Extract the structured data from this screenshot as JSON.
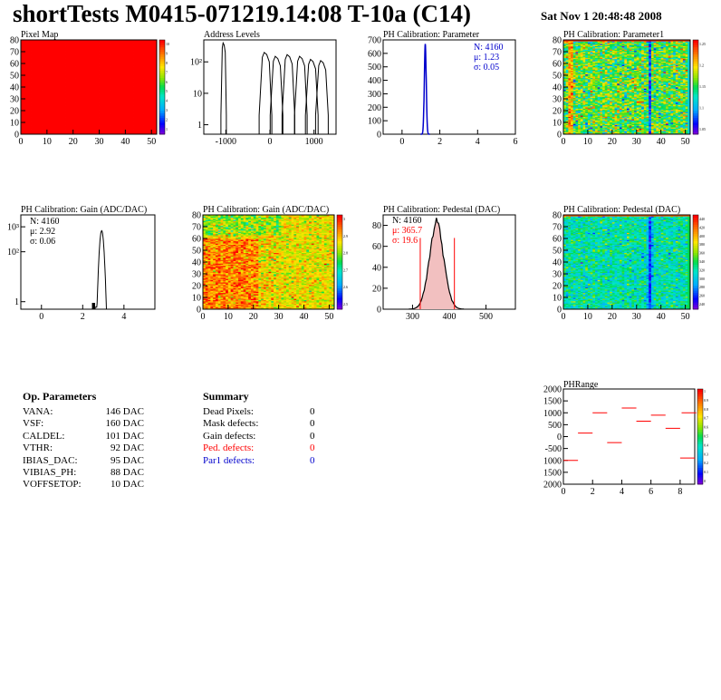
{
  "header": {
    "title": "shortTests M0415-071219.14:08 T-10a (C14)",
    "date": "Sat Nov  1 20:48:48 2008"
  },
  "colors": {
    "red": "#ff0000",
    "blue": "#0000cc",
    "hist_line": "#000000",
    "ped_fill": "#cc6666"
  },
  "panels": {
    "p1": {
      "title": "Pixel Map",
      "xticks": [
        "0",
        "10",
        "20",
        "30",
        "40",
        "50"
      ],
      "yticks": [
        "0",
        "10",
        "20",
        "30",
        "40",
        "50",
        "60",
        "70",
        "80"
      ],
      "zticks": [
        "10",
        "9",
        "8",
        "7",
        "6",
        "5",
        "4",
        "3",
        "2",
        "1"
      ]
    },
    "p2": {
      "title": "Address Levels",
      "xticks": [
        "-1000",
        "0",
        "1000"
      ],
      "yticks": [
        "1",
        "10",
        "10²"
      ]
    },
    "p3": {
      "title": "PH Calibration: Parameter",
      "xticks": [
        "0",
        "2",
        "4",
        "6"
      ],
      "yticks": [
        "0",
        "100",
        "200",
        "300",
        "400",
        "500",
        "600",
        "700"
      ],
      "stats": [
        "N: 4160",
        "μ: 1.23",
        "σ: 0.05"
      ]
    },
    "p4": {
      "title": "PH Calibration: Parameter1",
      "xticks": [
        "0",
        "10",
        "20",
        "30",
        "40",
        "50"
      ],
      "yticks": [
        "0",
        "10",
        "20",
        "30",
        "40",
        "50",
        "60",
        "70",
        "80"
      ],
      "zticks": [
        "1.25",
        "1.2",
        "1.15",
        "1.1",
        "1.05"
      ]
    },
    "p5": {
      "title": "PH Calibration: Gain (ADC/DAC)",
      "xticks": [
        "0",
        "2",
        "4"
      ],
      "yticks": [
        "1",
        "10²",
        "10³"
      ],
      "stats": [
        "N: 4160",
        "μ: 2.92",
        "σ: 0.06"
      ]
    },
    "p6": {
      "title": "PH Calibration: Gain (ADC/DAC)",
      "xticks": [
        "0",
        "10",
        "20",
        "30",
        "40",
        "50"
      ],
      "yticks": [
        "0",
        "10",
        "20",
        "30",
        "40",
        "50",
        "60",
        "70",
        "80"
      ],
      "zticks": [
        "3",
        "2.9",
        "2.8",
        "2.7",
        "2.6",
        "2.5"
      ]
    },
    "p7": {
      "title": "PH Calibration: Pedestal (DAC)",
      "xticks": [
        "300",
        "400",
        "500"
      ],
      "yticks": [
        "0",
        "20",
        "40",
        "60",
        "80"
      ],
      "stats": [
        "N: 4160",
        "μ: 365.7",
        "σ: 19.6"
      ]
    },
    "p8": {
      "title": "PH Calibration: Pedestal (DAC)",
      "xticks": [
        "0",
        "10",
        "20",
        "30",
        "40",
        "50"
      ],
      "yticks": [
        "0",
        "10",
        "20",
        "30",
        "40",
        "50",
        "60",
        "70",
        "80"
      ],
      "zticks": [
        "440",
        "420",
        "400",
        "380",
        "360",
        "340",
        "320",
        "300",
        "280",
        "260",
        "240"
      ]
    },
    "p9": {
      "title": "PHRange",
      "xticks": [
        "0",
        "2",
        "4",
        "6",
        "8"
      ],
      "yticks": [
        "2000",
        "1500",
        "1000",
        "500",
        "0",
        "-500",
        "1000",
        "1500",
        "2000"
      ],
      "zticks": [
        "1",
        "0.9",
        "0.8",
        "0.7",
        "0.6",
        "0.5",
        "0.4",
        "0.3",
        "0.2",
        "0.1",
        "0"
      ]
    }
  },
  "op_params": {
    "heading": "Op. Parameters",
    "rows": [
      {
        "name": "VANA:",
        "value": "146 DAC"
      },
      {
        "name": "VSF:",
        "value": "160 DAC"
      },
      {
        "name": "CALDEL:",
        "value": "101 DAC"
      },
      {
        "name": "VTHR:",
        "value": "92 DAC"
      },
      {
        "name": "IBIAS_DAC:",
        "value": "95 DAC"
      },
      {
        "name": "VIBIAS_PH:",
        "value": "88 DAC"
      },
      {
        "name": "VOFFSETOP:",
        "value": "10 DAC"
      }
    ]
  },
  "summary": {
    "heading": "Summary",
    "rows": [
      {
        "name": "Dead Pixels:",
        "value": "0",
        "color": "#000000"
      },
      {
        "name": "Mask defects:",
        "value": "0",
        "color": "#000000"
      },
      {
        "name": "Gain defects:",
        "value": "0",
        "color": "#000000"
      },
      {
        "name": "Ped. defects:",
        "value": "0",
        "color": "#ff0000"
      },
      {
        "name": "Par1 defects:",
        "value": "0",
        "color": "#0000cc"
      }
    ]
  },
  "chart_data": [
    {
      "type": "heatmap",
      "title": "Pixel Map",
      "xlim": [
        0,
        52
      ],
      "ylim": [
        0,
        80
      ],
      "zlim": [
        0,
        10
      ],
      "uniform_value": 10
    },
    {
      "type": "line",
      "title": "Address Levels",
      "log_y": true,
      "xlim": [
        -1500,
        1500
      ],
      "ylim": [
        0.5,
        500
      ],
      "peaks": [
        {
          "x": -1050,
          "y": 400
        },
        {
          "x": -100,
          "y": 200
        },
        {
          "x": 150,
          "y": 150
        },
        {
          "x": 420,
          "y": 170
        },
        {
          "x": 700,
          "y": 150
        },
        {
          "x": 950,
          "y": 120
        },
        {
          "x": 1180,
          "y": 110
        }
      ]
    },
    {
      "type": "bar",
      "title": "PH Calibration: Parameter",
      "xlim": [
        -1,
        6
      ],
      "ylim": [
        0,
        700
      ],
      "mean": 1.23,
      "sigma": 0.05,
      "entries": 4160,
      "peak": 670
    },
    {
      "type": "heatmap",
      "title": "PH Calibration: Parameter1",
      "xlim": [
        0,
        52
      ],
      "ylim": [
        0,
        80
      ],
      "zlim": [
        1.05,
        1.25
      ]
    },
    {
      "type": "bar",
      "title": "PH Calibration: Gain (ADC/DAC)",
      "log_y": true,
      "xlim": [
        -1,
        5.5
      ],
      "ylim": [
        0.5,
        3000
      ],
      "mean": 2.92,
      "sigma": 0.06,
      "entries": 4160,
      "peak": 700
    },
    {
      "type": "heatmap",
      "title": "PH Calibration: Gain (ADC/DAC)",
      "xlim": [
        0,
        52
      ],
      "ylim": [
        0,
        80
      ],
      "zlim": [
        2.5,
        3.0
      ]
    },
    {
      "type": "bar",
      "title": "PH Calibration: Pedestal (DAC)",
      "xlim": [
        220,
        580
      ],
      "ylim": [
        0,
        90
      ],
      "mean": 365.7,
      "sigma": 19.6,
      "entries": 4160,
      "peak": 82,
      "cut_lines": [
        321,
        414
      ]
    },
    {
      "type": "heatmap",
      "title": "PH Calibration: Pedestal (DAC)",
      "xlim": [
        0,
        52
      ],
      "ylim": [
        0,
        80
      ],
      "zlim": [
        240,
        440
      ]
    },
    {
      "type": "scatter",
      "title": "PHRange",
      "xlim": [
        0,
        9
      ],
      "ylim": [
        -2000,
        2000
      ],
      "segments": [
        {
          "x": 0,
          "y": -1000
        },
        {
          "x": 1,
          "y": 150
        },
        {
          "x": 2,
          "y": 1000
        },
        {
          "x": 3,
          "y": -250
        },
        {
          "x": 4,
          "y": 1200
        },
        {
          "x": 5,
          "y": 650
        },
        {
          "x": 6,
          "y": 900
        },
        {
          "x": 7,
          "y": 350
        },
        {
          "x": 8,
          "y": -900
        },
        {
          "x": 8.1,
          "y": 1000
        }
      ]
    }
  ]
}
